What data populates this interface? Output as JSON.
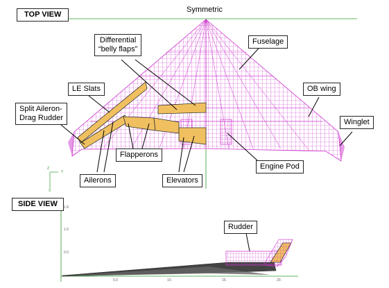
{
  "titles": {
    "top_view": "TOP VIEW",
    "side_view": "SIDE VIEW",
    "symmetric": "Symmetric"
  },
  "labels": {
    "differential_belly_flaps": [
      "Differential",
      "“belly flaps”"
    ],
    "fuselage": "Fuselage",
    "le_slats": "LE Slats",
    "ob_wing": "OB wing",
    "split_aileron": [
      "Split Aileron-",
      "Drag Rudder"
    ],
    "winglet": "Winglet",
    "flapperons": "Flapperons",
    "engine_pod": "Engine Pod",
    "ailerons": "Ailerons",
    "elevators": "Elevators",
    "rudder": "Rudder"
  },
  "axis_triad": {
    "z": "Z",
    "y": "Y",
    "x": "X"
  },
  "side_axis": {
    "y_ticks": [
      "1.8",
      "1.0",
      "0.0"
    ],
    "x_ticks": [
      "5.0",
      "10.",
      "15.",
      "20."
    ]
  },
  "colors": {
    "mesh": "#cc33cc",
    "surface_fill": "#f0c060",
    "surface_stroke": "#333333",
    "symmetry_line": "#2a9a2a",
    "leader": "#000000"
  }
}
